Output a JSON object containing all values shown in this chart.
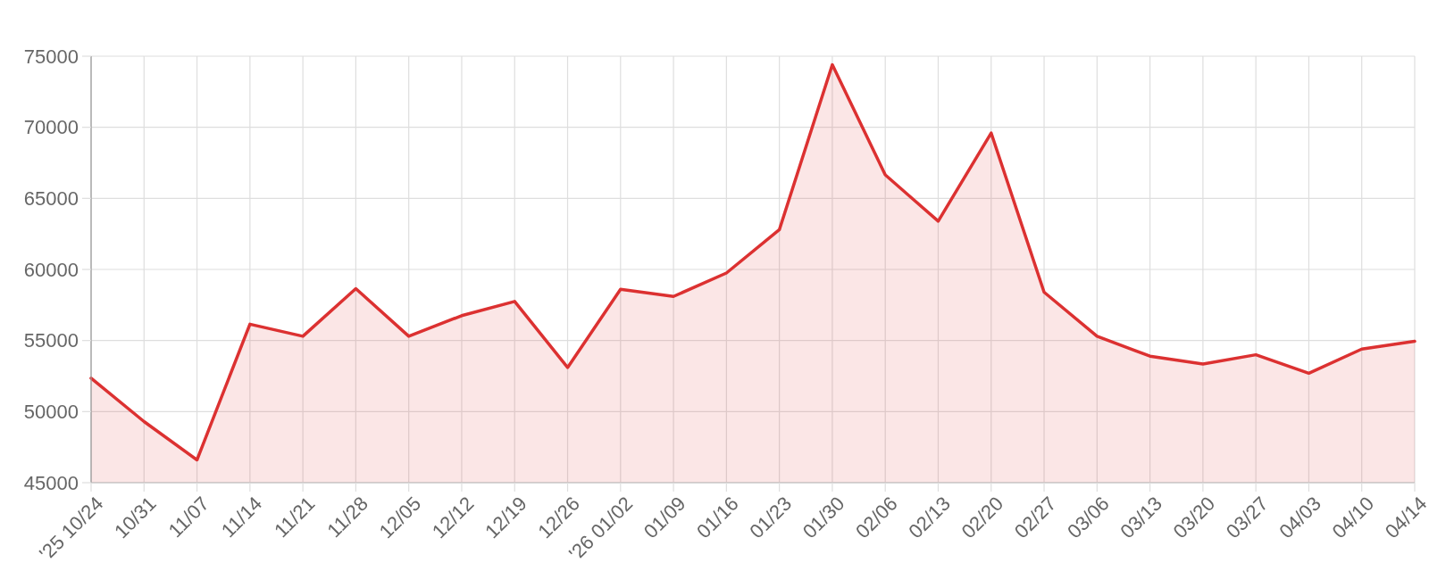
{
  "chart_data": {
    "type": "area",
    "categories": [
      "'25 10/24",
      "10/31",
      "11/07",
      "11/14",
      "11/21",
      "11/28",
      "12/05",
      "12/12",
      "12/19",
      "12/26",
      "'26 01/02",
      "01/09",
      "01/16",
      "01/23",
      "01/30",
      "02/06",
      "02/13",
      "02/20",
      "02/27",
      "03/06",
      "03/13",
      "03/20",
      "03/27",
      "04/03",
      "04/10",
      "04/14"
    ],
    "series": [
      {
        "color": "#dc3131",
        "values": [
          52350,
          49300,
          46600,
          56150,
          55300,
          58650,
          55300,
          56750,
          57750,
          53100,
          58600,
          58100,
          59750,
          62800,
          74400,
          66650,
          63400,
          69600,
          58400,
          55300,
          53900,
          53350,
          54000,
          52700,
          54400,
          54950
        ]
      }
    ],
    "ylim": [
      45000,
      75000
    ],
    "yticks": [
      45000,
      50000,
      55000,
      60000,
      65000,
      70000,
      75000
    ],
    "grid": true
  }
}
